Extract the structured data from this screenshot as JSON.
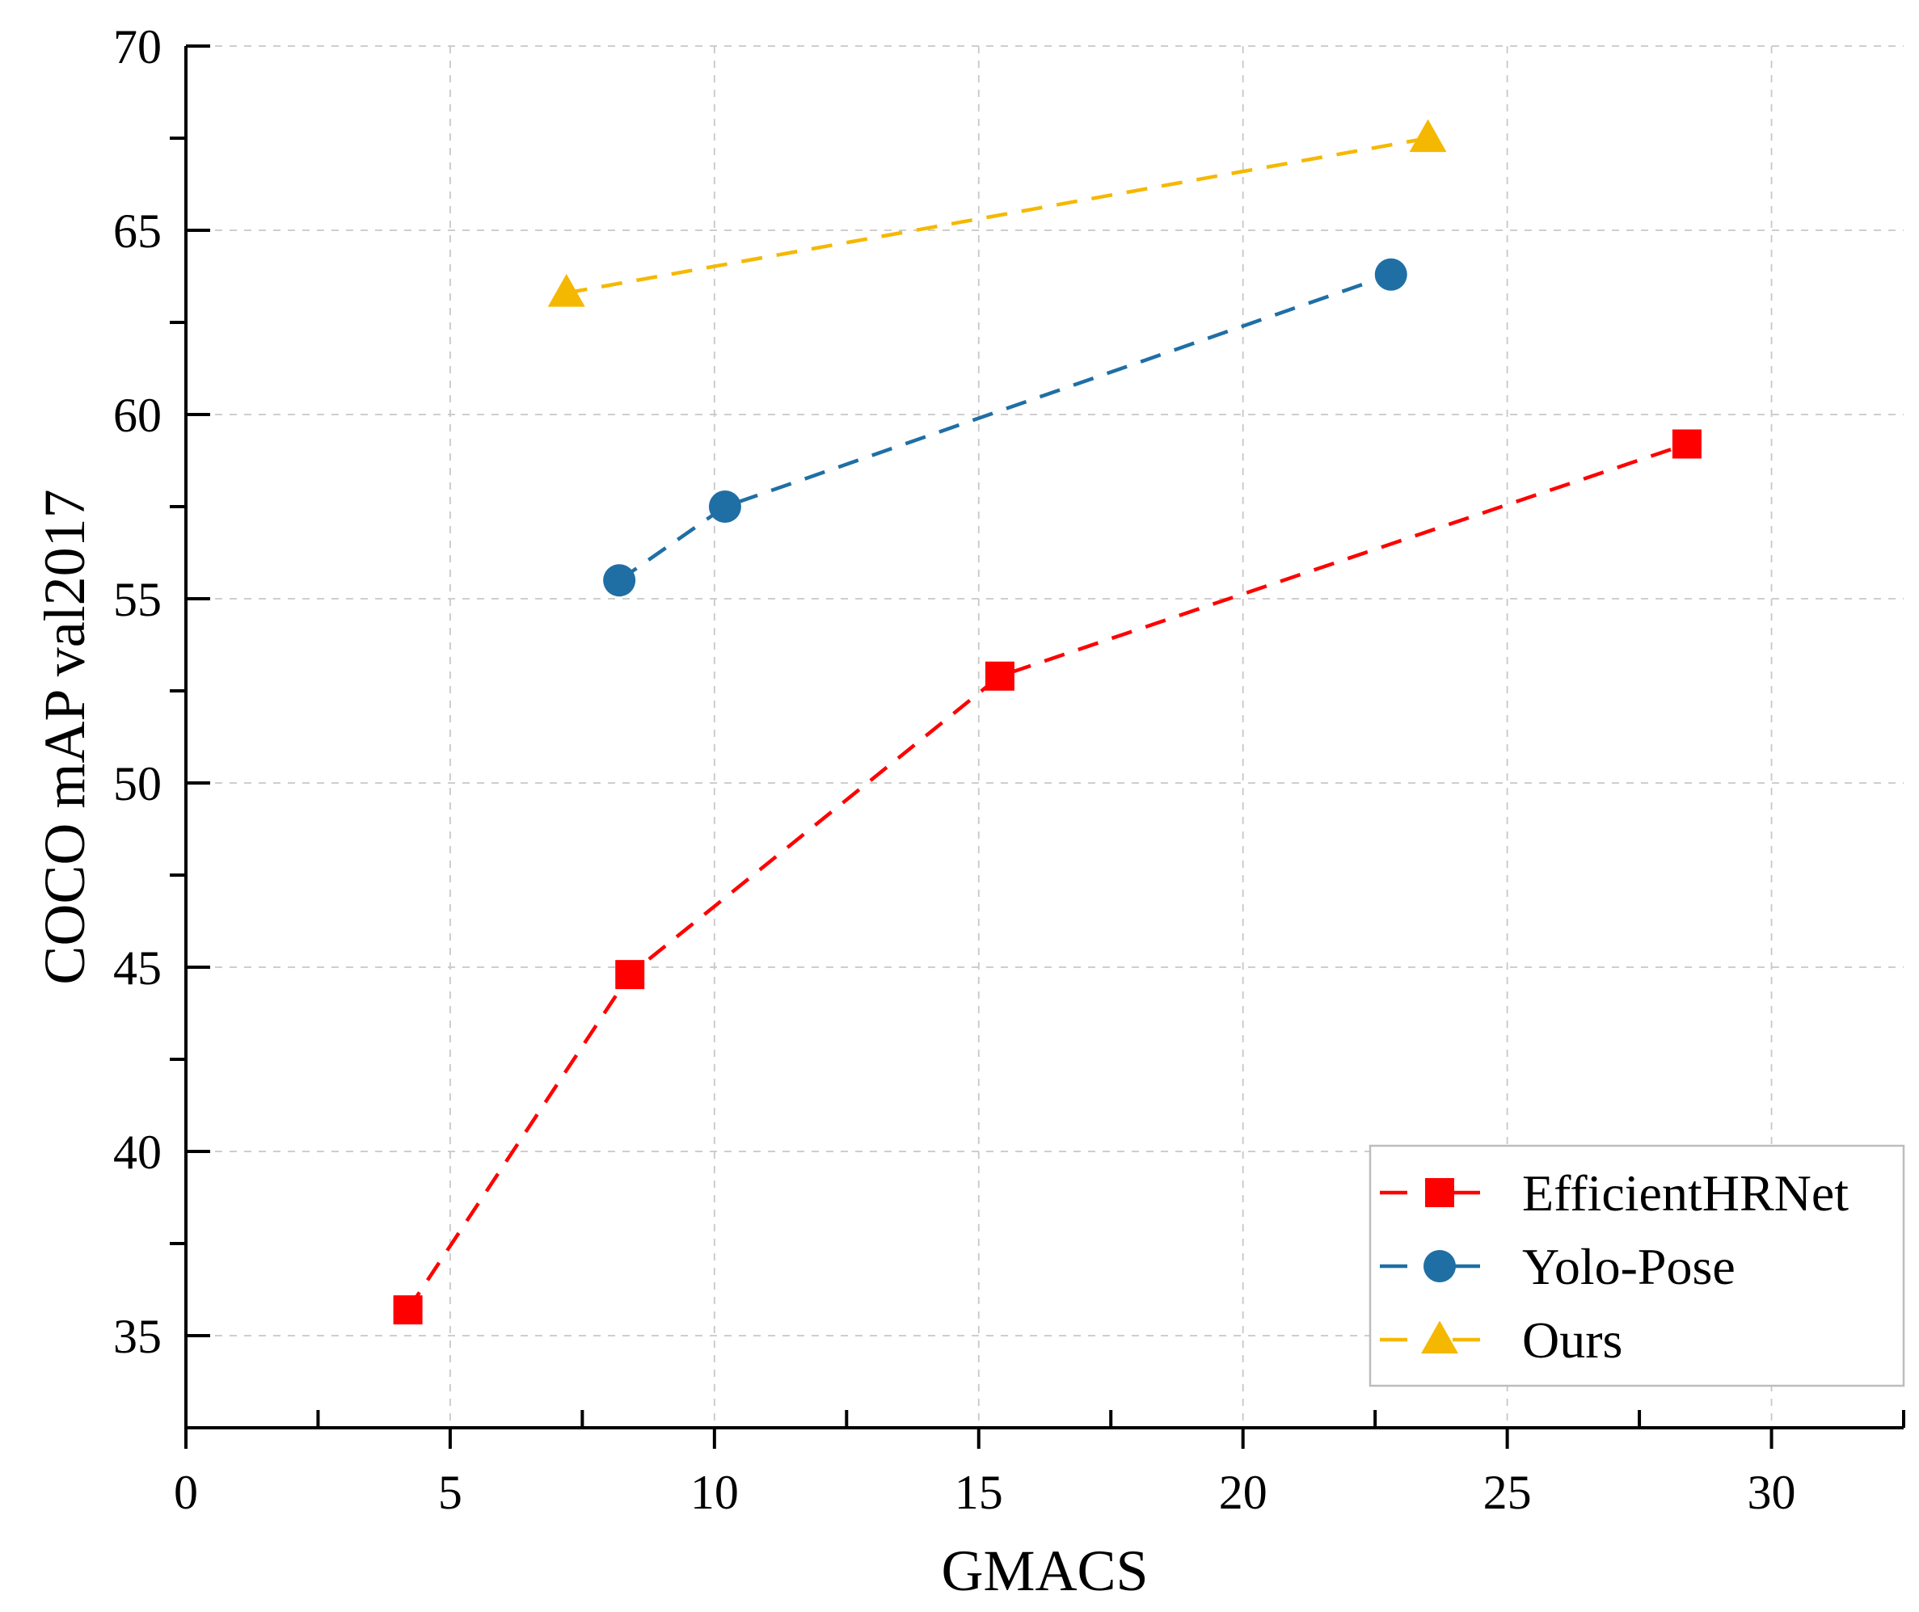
{
  "chart_data": {
    "type": "line",
    "title": "",
    "xlabel": "GMACS",
    "ylabel": "COCO mAP val2017",
    "xlim": [
      0,
      32.5
    ],
    "ylim": [
      32.5,
      70
    ],
    "xticks": [
      0,
      5,
      10,
      15,
      20,
      25,
      30
    ],
    "yticks": [
      35,
      40,
      45,
      50,
      55,
      60,
      65,
      70
    ],
    "xminor_ticks": [
      2.5,
      7.5,
      12.5,
      17.5,
      22.5,
      27.5,
      32.5
    ],
    "yminor_ticks": [
      37.5,
      42.5,
      47.5,
      52.5,
      57.5,
      62.5,
      67.5
    ],
    "grid": true,
    "legend_position": "bottom-right",
    "series": [
      {
        "name": "EfficientHRNet",
        "color": "#ff0000",
        "marker": "square",
        "line_style": "dashed",
        "x": [
          4.2,
          8.4,
          15.4,
          28.4
        ],
        "y": [
          35.7,
          44.8,
          52.9,
          59.2
        ]
      },
      {
        "name": "Yolo-Pose",
        "color": "#1f6fa5",
        "marker": "circle",
        "line_style": "dashed",
        "x": [
          8.2,
          10.2,
          22.8
        ],
        "y": [
          55.5,
          57.5,
          63.8
        ]
      },
      {
        "name": "Ours",
        "color": "#f5b800",
        "marker": "triangle",
        "line_style": "dashed",
        "x": [
          7.2,
          23.5
        ],
        "y": [
          63.3,
          67.5
        ]
      }
    ]
  }
}
